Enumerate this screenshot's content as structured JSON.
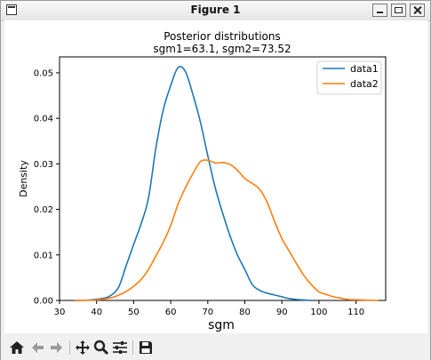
{
  "window": {
    "title": "Figure 1"
  },
  "toolbar": {
    "buttons": [
      {
        "name": "home-icon"
      },
      {
        "name": "back-arrow-icon"
      },
      {
        "name": "forward-arrow-icon"
      },
      {
        "name": "pan-icon"
      },
      {
        "name": "zoom-icon"
      },
      {
        "name": "configure-subplots-icon"
      },
      {
        "name": "save-icon"
      }
    ]
  },
  "chart_data": {
    "type": "line",
    "title": "Posterior distributions",
    "subtitle": "sgm1=63.1,  sgm2=73.52",
    "xlabel": "sgm",
    "ylabel": "Density",
    "xlim": [
      30,
      118
    ],
    "ylim": [
      0,
      0.0535
    ],
    "xticks": [
      30,
      40,
      50,
      60,
      70,
      80,
      90,
      100,
      110
    ],
    "yticks": [
      0.0,
      0.01,
      0.02,
      0.03,
      0.04,
      0.05
    ],
    "ytick_labels": [
      "0.00",
      "0.01",
      "0.02",
      "0.03",
      "0.04",
      "0.05"
    ],
    "grid": false,
    "legend_position": "top-right",
    "colors": {
      "data1": "#1f77b4",
      "data2": "#ff7f0e"
    },
    "series": [
      {
        "name": "data1",
        "x": [
          34,
          38,
          42,
          44,
          46,
          48,
          50,
          52,
          54,
          56,
          58,
          60,
          62,
          64,
          66,
          68,
          70,
          72,
          74,
          76,
          78,
          80,
          82,
          84,
          86,
          88,
          90,
          92,
          94,
          98
        ],
        "values": [
          0,
          0.0001,
          0.0005,
          0.0012,
          0.003,
          0.0077,
          0.0123,
          0.0168,
          0.0225,
          0.0335,
          0.0419,
          0.0472,
          0.0512,
          0.0502,
          0.0452,
          0.0392,
          0.0318,
          0.0248,
          0.0192,
          0.0142,
          0.01,
          0.0068,
          0.0035,
          0.0022,
          0.0016,
          0.0012,
          0.0008,
          0.0004,
          0.0002,
          0
        ]
      },
      {
        "name": "data2",
        "x": [
          34,
          40,
          44,
          46,
          48,
          50,
          52,
          54,
          56,
          58,
          60,
          62,
          64,
          66,
          68,
          70,
          72,
          74,
          76,
          78,
          80,
          82,
          84,
          86,
          88,
          90,
          92,
          94,
          96,
          98,
          100,
          102,
          104,
          106,
          108,
          112,
          116
        ],
        "values": [
          0,
          0.0001,
          0.0006,
          0.0012,
          0.002,
          0.0031,
          0.0046,
          0.0068,
          0.0098,
          0.0128,
          0.0165,
          0.0212,
          0.0248,
          0.0279,
          0.0305,
          0.0308,
          0.0302,
          0.0303,
          0.0299,
          0.0286,
          0.0268,
          0.0257,
          0.0244,
          0.0216,
          0.0174,
          0.0136,
          0.0108,
          0.008,
          0.0054,
          0.0034,
          0.0019,
          0.0013,
          0.0008,
          0.0005,
          0.0002,
          0.0001,
          0
        ]
      }
    ]
  }
}
